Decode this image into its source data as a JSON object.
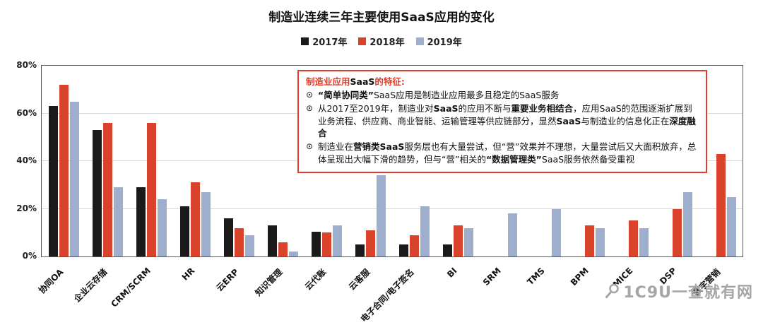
{
  "title": "制造业连续三年主要使用SaaS应用的变化",
  "legend": [
    {
      "label": "2017年",
      "color": "#1a1a1a"
    },
    {
      "label": "2018年",
      "color": "#d9432c"
    },
    {
      "label": "2019年",
      "color": "#9dafcd"
    }
  ],
  "chart_data": {
    "type": "bar",
    "title": "制造业连续三年主要使用SaaS应用的变化",
    "categories": [
      "协同OA",
      "企业云存储",
      "CRM/SCRM",
      "HR",
      "云ERP",
      "知识管理",
      "云代账",
      "云客服",
      "电子合同/电子签名",
      "BI",
      "SRM",
      "TMS",
      "BPM",
      "MICE",
      "DSP",
      "数字营销"
    ],
    "series": [
      {
        "name": "2017年",
        "color": "#1a1a1a",
        "values": [
          63,
          53,
          29,
          21,
          16,
          13,
          10.5,
          5,
          5,
          5,
          null,
          null,
          null,
          null,
          null,
          null
        ]
      },
      {
        "name": "2018年",
        "color": "#d9432c",
        "values": [
          72,
          56,
          56,
          31,
          12,
          6,
          10,
          11,
          9,
          13,
          null,
          null,
          13,
          15,
          20,
          43
        ]
      },
      {
        "name": "2019年",
        "color": "#9dafcd",
        "values": [
          65,
          29,
          24,
          27,
          9,
          2,
          13,
          34,
          21,
          12,
          18,
          20,
          12,
          12,
          27,
          25
        ]
      }
    ],
    "xlabel": "",
    "ylabel": "",
    "ylim": [
      0,
      80
    ],
    "yticks": [
      0,
      20,
      40,
      60,
      80
    ],
    "ytick_labels": [
      "0%",
      "20%",
      "40%",
      "60%",
      "80%"
    ],
    "grid": true,
    "legend_position": "top"
  },
  "annotation": {
    "marker": "⊙",
    "title_segments": [
      {
        "text": "制造业应用",
        "style": "red-bold"
      },
      {
        "text": "SaaS",
        "style": "dark-bold"
      },
      {
        "text": "的特征:",
        "style": "red-bold"
      }
    ],
    "bullets": [
      {
        "segments": [
          {
            "text": "“简单协同类”",
            "style": "bold"
          },
          {
            "text": "SaaS应用是制造业应用最多且稳定的SaaS服务",
            "style": "normal"
          }
        ]
      },
      {
        "segments": [
          {
            "text": "从2017至2019年，制造业对",
            "style": "normal"
          },
          {
            "text": "SaaS",
            "style": "bold"
          },
          {
            "text": "的应用不断与",
            "style": "normal"
          },
          {
            "text": "重要业务相结合",
            "style": "bold"
          },
          {
            "text": "，应用SaaS的范围逐渐扩展到业务流程、供应商、商业智能、运输管理等供应链部分，显然",
            "style": "normal"
          },
          {
            "text": "SaaS",
            "style": "bold"
          },
          {
            "text": "与制造业的信息化正在",
            "style": "normal"
          },
          {
            "text": "深度融合",
            "style": "bold"
          }
        ]
      },
      {
        "segments": [
          {
            "text": "制造业在",
            "style": "normal"
          },
          {
            "text": "营销类SaaS",
            "style": "bold"
          },
          {
            "text": "服务层也有大量尝试，但“营”效果并不理想，大量尝试后又大面积放弃，总体呈现出大幅下滑的趋势，但与“营”相关的",
            "style": "normal"
          },
          {
            "text": "“数据管理类”",
            "style": "bold"
          },
          {
            "text": "SaaS服务依然备受重视",
            "style": "normal"
          }
        ]
      }
    ]
  },
  "watermark": {
    "text": "1C9U一查就有网"
  }
}
